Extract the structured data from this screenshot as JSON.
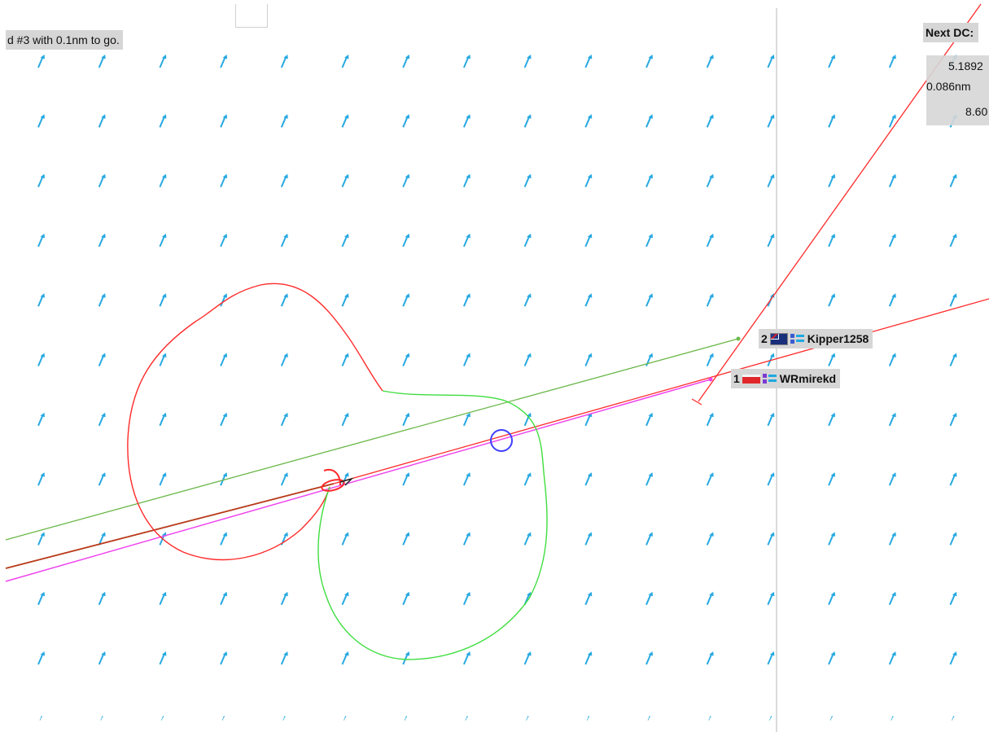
{
  "status_message": "d #3 with 0.1nm to go.",
  "next_dc": {
    "title": "Next DC:",
    "value1": "5.1892",
    "value2": "0.086nm",
    "value3": "8.60"
  },
  "boats": [
    {
      "rank": "2",
      "name": "Kipper1258",
      "flag": "australia-flag-icon",
      "logo": "team-logo-icon"
    },
    {
      "rank": "1",
      "name": "WRmirekd",
      "flag": "red-white-flag-icon",
      "logo": "team-logo-icon"
    }
  ],
  "colors": {
    "wind_arrow": "#27a9e1",
    "route_red": "#ff2a2a",
    "route_green": "#3fdd3f",
    "course_line_green": "#6cb84a",
    "course_line_magenta": "#ee44ee",
    "course_line_dark_red": "#c0392b",
    "target_circle": "#4040ff",
    "status_bg": "#d6d6d6"
  },
  "icons": {
    "wind_arrows": "wind-arrow-icon",
    "boat": "boat-icon",
    "target": "target-circle-icon"
  }
}
